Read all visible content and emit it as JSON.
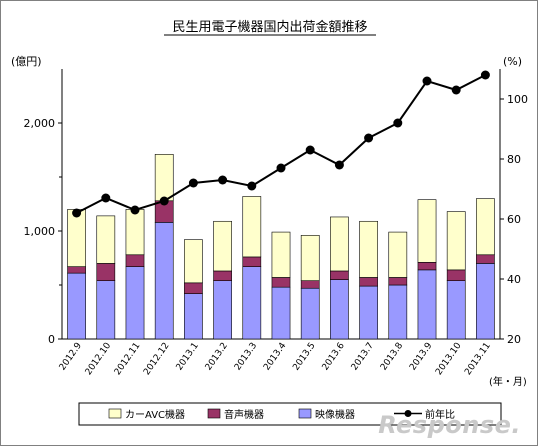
{
  "chart_data": {
    "type": "bar",
    "title": "民生用電子機器国内出荷金額推移",
    "ylabel": "(億円)",
    "y2label": "(%)",
    "xunit": "(年・月)",
    "categories": [
      "2012.9",
      "2012.10",
      "2012.11",
      "2012.12",
      "2013.1",
      "2013.2",
      "2013.3",
      "2013.4",
      "2013.5",
      "2013.6",
      "2013.7",
      "2013.8",
      "2013.9",
      "2013.10",
      "2013.11"
    ],
    "ylim": [
      0,
      2500
    ],
    "yticks": [
      "0",
      "1,000",
      "2,000"
    ],
    "y2lim": [
      20,
      110
    ],
    "y2ticks": [
      "20",
      "40",
      "60",
      "80",
      "100"
    ],
    "legend_position": "bottom",
    "grid": false,
    "series": [
      {
        "name": "映像機器",
        "kind": "bar",
        "color": "#9999ff",
        "values": [
          610,
          540,
          670,
          1080,
          420,
          540,
          670,
          480,
          470,
          550,
          490,
          500,
          640,
          540,
          700
        ]
      },
      {
        "name": "音声機器",
        "kind": "bar",
        "color": "#993366",
        "values": [
          60,
          160,
          110,
          200,
          100,
          90,
          90,
          90,
          70,
          80,
          80,
          70,
          70,
          100,
          80
        ]
      },
      {
        "name": "カーAVC機器",
        "kind": "bar",
        "color": "#ffffcc",
        "values": [
          530,
          440,
          420,
          430,
          400,
          460,
          560,
          420,
          420,
          500,
          520,
          420,
          580,
          540,
          520
        ]
      },
      {
        "name": "前年比",
        "kind": "line",
        "axis": "right",
        "color": "#000000",
        "values": [
          62,
          67,
          63,
          66,
          72,
          73,
          71,
          77,
          83,
          78,
          87,
          92,
          106,
          103,
          108
        ]
      }
    ]
  },
  "watermark": "Response."
}
